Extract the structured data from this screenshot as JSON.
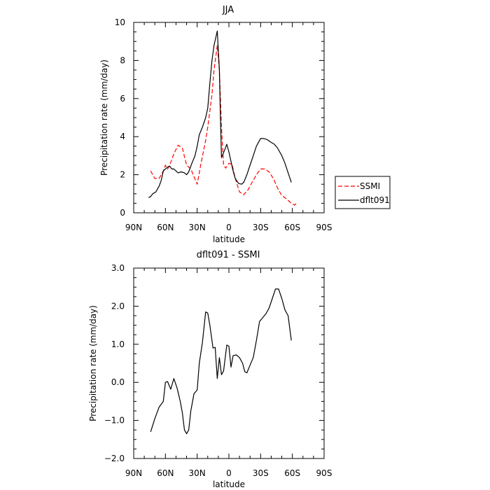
{
  "chart_data": [
    {
      "type": "line",
      "title": "JJA",
      "xlabel": "latitude",
      "ylabel": "Precipitation rate (mm/day)",
      "xlim": [
        90,
        -90
      ],
      "ylim": [
        0,
        10
      ],
      "x_ticks": [
        {
          "value": 90,
          "label": "90N"
        },
        {
          "value": 60,
          "label": "60N"
        },
        {
          "value": 30,
          "label": "30N"
        },
        {
          "value": 0,
          "label": "0"
        },
        {
          "value": -30,
          "label": "30S"
        },
        {
          "value": -60,
          "label": "60S"
        },
        {
          "value": -90,
          "label": "90S"
        }
      ],
      "y_ticks": [
        {
          "value": 0,
          "label": "0"
        },
        {
          "value": 2,
          "label": "2"
        },
        {
          "value": 4,
          "label": "4"
        },
        {
          "value": 6,
          "label": "6"
        },
        {
          "value": 8,
          "label": "8"
        },
        {
          "value": 10,
          "label": "10"
        }
      ],
      "legend_position": "right, outside plot",
      "series": [
        {
          "name": "SSMI",
          "color": "#ff0000",
          "style": "dashed",
          "points": [
            [
              74,
              2.2
            ],
            [
              70,
              1.8
            ],
            [
              66,
              1.8
            ],
            [
              62,
              2.2
            ],
            [
              60,
              2.5
            ],
            [
              58,
              2.3
            ],
            [
              56,
              2.5
            ],
            [
              52,
              3.1
            ],
            [
              48,
              3.55
            ],
            [
              44,
              3.4
            ],
            [
              40,
              2.5
            ],
            [
              36,
              2.3
            ],
            [
              30,
              1.5
            ],
            [
              26,
              2.7
            ],
            [
              22,
              3.8
            ],
            [
              20,
              4.5
            ],
            [
              16,
              6.2
            ],
            [
              14,
              7.5
            ],
            [
              11,
              8.8
            ],
            [
              9,
              7.5
            ],
            [
              7,
              4.5
            ],
            [
              5,
              2.5
            ],
            [
              3,
              2.35
            ],
            [
              0,
              2.6
            ],
            [
              -3,
              2.55
            ],
            [
              -6,
              1.8
            ],
            [
              -10,
              1.1
            ],
            [
              -14,
              0.95
            ],
            [
              -18,
              1.2
            ],
            [
              -22,
              1.6
            ],
            [
              -26,
              2.0
            ],
            [
              -30,
              2.3
            ],
            [
              -34,
              2.3
            ],
            [
              -38,
              2.15
            ],
            [
              -42,
              1.8
            ],
            [
              -46,
              1.3
            ],
            [
              -50,
              0.9
            ],
            [
              -54,
              0.75
            ],
            [
              -58,
              0.55
            ],
            [
              -62,
              0.4
            ],
            [
              -64,
              0.5
            ]
          ]
        },
        {
          "name": "dflt091",
          "color": "#000000",
          "style": "solid",
          "points": [
            [
              76,
              0.8
            ],
            [
              74,
              0.85
            ],
            [
              72,
              1.0
            ],
            [
              69,
              1.1
            ],
            [
              66,
              1.4
            ],
            [
              64,
              1.7
            ],
            [
              62,
              2.2
            ],
            [
              60,
              2.3
            ],
            [
              58,
              2.4
            ],
            [
              56,
              2.45
            ],
            [
              54,
              2.3
            ],
            [
              52,
              2.3
            ],
            [
              50,
              2.2
            ],
            [
              48,
              2.1
            ],
            [
              45,
              2.15
            ],
            [
              42,
              2.1
            ],
            [
              40,
              2.0
            ],
            [
              38,
              2.15
            ],
            [
              35,
              2.6
            ],
            [
              32,
              3.0
            ],
            [
              30,
              3.5
            ],
            [
              28,
              4.1
            ],
            [
              25,
              4.5
            ],
            [
              22,
              5.0
            ],
            [
              20,
              5.5
            ],
            [
              18,
              6.8
            ],
            [
              16,
              8.0
            ],
            [
              14,
              8.8
            ],
            [
              11,
              9.55
            ],
            [
              9,
              7.5
            ],
            [
              8,
              5.0
            ],
            [
              7,
              2.9
            ],
            [
              4,
              3.3
            ],
            [
              2,
              3.6
            ],
            [
              0,
              3.2
            ],
            [
              -2,
              2.7
            ],
            [
              -4,
              2.2
            ],
            [
              -6,
              1.8
            ],
            [
              -9,
              1.55
            ],
            [
              -12,
              1.5
            ],
            [
              -14,
              1.6
            ],
            [
              -17,
              2.0
            ],
            [
              -20,
              2.5
            ],
            [
              -23,
              3.0
            ],
            [
              -26,
              3.5
            ],
            [
              -30,
              3.9
            ],
            [
              -33,
              3.9
            ],
            [
              -36,
              3.85
            ],
            [
              -40,
              3.7
            ],
            [
              -43,
              3.6
            ],
            [
              -46,
              3.4
            ],
            [
              -50,
              3.0
            ],
            [
              -53,
              2.6
            ],
            [
              -56,
              2.1
            ],
            [
              -59,
              1.6
            ]
          ]
        }
      ]
    },
    {
      "type": "line",
      "title": "dflt091 - SSMI",
      "xlabel": "latitude",
      "ylabel": "Precipitation rate (mm/day)",
      "xlim": [
        90,
        -90
      ],
      "ylim": [
        -2,
        3
      ],
      "x_ticks": [
        {
          "value": 90,
          "label": "90N"
        },
        {
          "value": 60,
          "label": "60N"
        },
        {
          "value": 30,
          "label": "30N"
        },
        {
          "value": 0,
          "label": "0"
        },
        {
          "value": -30,
          "label": "30S"
        },
        {
          "value": -60,
          "label": "60S"
        },
        {
          "value": -90,
          "label": "90S"
        }
      ],
      "y_ticks": [
        {
          "value": -2,
          "label": "−2.0"
        },
        {
          "value": -1,
          "label": "−1.0"
        },
        {
          "value": 0,
          "label": "0.0"
        },
        {
          "value": 1,
          "label": "1.0"
        },
        {
          "value": 2,
          "label": "2.0"
        },
        {
          "value": 3,
          "label": "3.0"
        }
      ],
      "series": [
        {
          "name": "",
          "color": "#000000",
          "style": "solid",
          "points": [
            [
              74,
              -1.3
            ],
            [
              70,
              -0.95
            ],
            [
              66,
              -0.65
            ],
            [
              62,
              -0.5
            ],
            [
              60,
              0.0
            ],
            [
              58,
              0.02
            ],
            [
              55,
              -0.18
            ],
            [
              52,
              0.1
            ],
            [
              49,
              -0.15
            ],
            [
              46,
              -0.5
            ],
            [
              44,
              -0.8
            ],
            [
              42,
              -1.25
            ],
            [
              40,
              -1.35
            ],
            [
              38,
              -1.25
            ],
            [
              36,
              -0.75
            ],
            [
              33,
              -0.3
            ],
            [
              30,
              -0.2
            ],
            [
              28,
              0.5
            ],
            [
              25,
              1.05
            ],
            [
              22,
              1.85
            ],
            [
              20,
              1.82
            ],
            [
              18,
              1.5
            ],
            [
              15,
              0.9
            ],
            [
              13,
              0.92
            ],
            [
              11,
              0.1
            ],
            [
              9,
              0.65
            ],
            [
              7,
              0.2
            ],
            [
              5,
              0.3
            ],
            [
              2,
              0.98
            ],
            [
              0,
              0.95
            ],
            [
              -2,
              0.4
            ],
            [
              -4,
              0.7
            ],
            [
              -7,
              0.72
            ],
            [
              -10,
              0.65
            ],
            [
              -13,
              0.5
            ],
            [
              -15,
              0.28
            ],
            [
              -17,
              0.25
            ],
            [
              -20,
              0.45
            ],
            [
              -23,
              0.65
            ],
            [
              -26,
              1.1
            ],
            [
              -29,
              1.6
            ],
            [
              -32,
              1.7
            ],
            [
              -35,
              1.8
            ],
            [
              -38,
              1.95
            ],
            [
              -41,
              2.2
            ],
            [
              -44,
              2.45
            ],
            [
              -47,
              2.45
            ],
            [
              -50,
              2.2
            ],
            [
              -53,
              1.9
            ],
            [
              -56,
              1.75
            ],
            [
              -59,
              1.1
            ]
          ]
        }
      ]
    }
  ],
  "legend": {
    "items": [
      {
        "label": "SSMI",
        "color": "#ff0000",
        "style": "dashed"
      },
      {
        "label": "dflt091",
        "color": "#000000",
        "style": "solid"
      }
    ]
  }
}
